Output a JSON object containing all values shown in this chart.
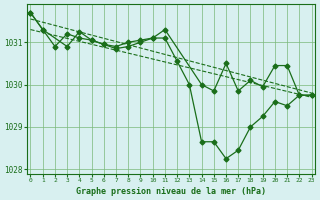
{
  "line1_x": [
    0,
    1,
    2,
    3,
    4,
    5,
    6,
    7,
    8,
    9,
    10,
    11,
    12,
    13,
    14,
    15,
    16,
    17,
    18,
    19,
    20,
    21,
    22,
    23
  ],
  "line1_y": [
    1031.7,
    1031.3,
    1030.9,
    1031.2,
    1031.1,
    1031.05,
    1030.95,
    1030.9,
    1031.0,
    1031.05,
    1031.1,
    1031.1,
    1030.55,
    1030.0,
    1028.65,
    1028.65,
    1028.25,
    1028.45,
    1029.0,
    1029.25,
    1029.6,
    1029.5,
    1029.75,
    1029.75
  ],
  "line2_x": [
    0,
    1,
    3,
    4,
    5,
    6,
    7,
    8,
    9,
    10,
    11,
    14,
    15,
    16,
    17,
    18,
    19,
    20,
    21,
    22,
    23
  ],
  "line2_y": [
    1031.7,
    1031.3,
    1030.9,
    1031.25,
    1031.05,
    1030.95,
    1030.85,
    1030.9,
    1031.0,
    1031.1,
    1031.3,
    1030.0,
    1029.85,
    1030.5,
    1029.85,
    1030.1,
    1029.95,
    1030.45,
    1030.45,
    1029.75,
    1029.75
  ],
  "line3_x": [
    0,
    23
  ],
  "line3_y": [
    1031.55,
    1029.8
  ],
  "line4_x": [
    0,
    23
  ],
  "line4_y": [
    1031.3,
    1029.7
  ],
  "line_color": "#1a6e1a",
  "bg_color": "#d8f0f0",
  "grid_color": "#7ab87a",
  "xlabel": "Graphe pression niveau de la mer (hPa)",
  "xlim": [
    0,
    23
  ],
  "ylim": [
    1027.9,
    1031.9
  ],
  "yticks": [
    1028,
    1029,
    1030,
    1031
  ],
  "xticks": [
    0,
    1,
    2,
    3,
    4,
    5,
    6,
    7,
    8,
    9,
    10,
    11,
    12,
    13,
    14,
    15,
    16,
    17,
    18,
    19,
    20,
    21,
    22,
    23
  ]
}
